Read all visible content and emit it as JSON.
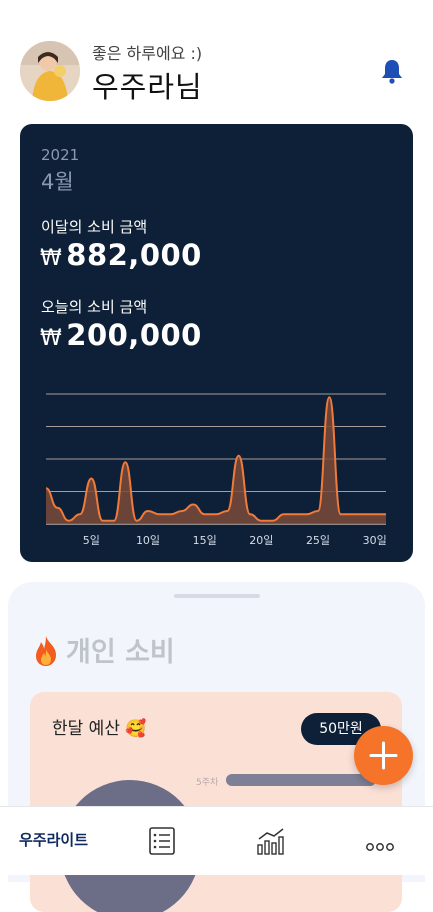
{
  "header": {
    "greeting": "좋은 하루에요 :)",
    "username": "우주라님",
    "avatar_icon": "avatar-photo",
    "bell_icon": "bell-icon"
  },
  "summary": {
    "year": "2021",
    "month": "4월",
    "month_label": "이달의 소비 금액",
    "month_currency": "₩",
    "month_amount": "882,000",
    "today_label": "오늘의 소비 금액",
    "today_currency": "₩",
    "today_amount": "200,000"
  },
  "chart_data": {
    "type": "area",
    "x_ticks": [
      "5일",
      "10일",
      "15일",
      "20일",
      "25일",
      "30일"
    ],
    "x": [
      1,
      2,
      3,
      4,
      5,
      6,
      7,
      8,
      9,
      10,
      11,
      12,
      13,
      14,
      15,
      16,
      17,
      18,
      19,
      20,
      21,
      22,
      23,
      24,
      25,
      26,
      27,
      28,
      29,
      30
    ],
    "values": [
      1.1,
      0.5,
      0.1,
      0.3,
      1.4,
      0.1,
      0.1,
      1.9,
      0.1,
      0.4,
      0.3,
      0.3,
      0.4,
      0.6,
      0.3,
      0.3,
      0.4,
      2.1,
      0.3,
      0.1,
      0.1,
      0.3,
      0.3,
      0.3,
      0.4,
      3.9,
      0.3,
      0.3,
      0.3,
      0.3
    ],
    "ylim": [
      0,
      4
    ],
    "grid": true,
    "colors": {
      "line": "#f07a3a",
      "fill": "#7a4a3a",
      "grid": "#f0d9c8"
    }
  },
  "personal": {
    "title": "개인 소비",
    "title_icon": "fire-icon"
  },
  "budget": {
    "title": "한달 예산 🥰",
    "badge": "50만원",
    "week_label": "5주차",
    "progress": 1.0
  },
  "fab": {
    "icon": "plus-icon",
    "color": "#f5742a"
  },
  "nav": {
    "home_label": "우주라이트",
    "items": [
      "list-icon",
      "stats-chart-icon",
      "more-icon"
    ]
  }
}
